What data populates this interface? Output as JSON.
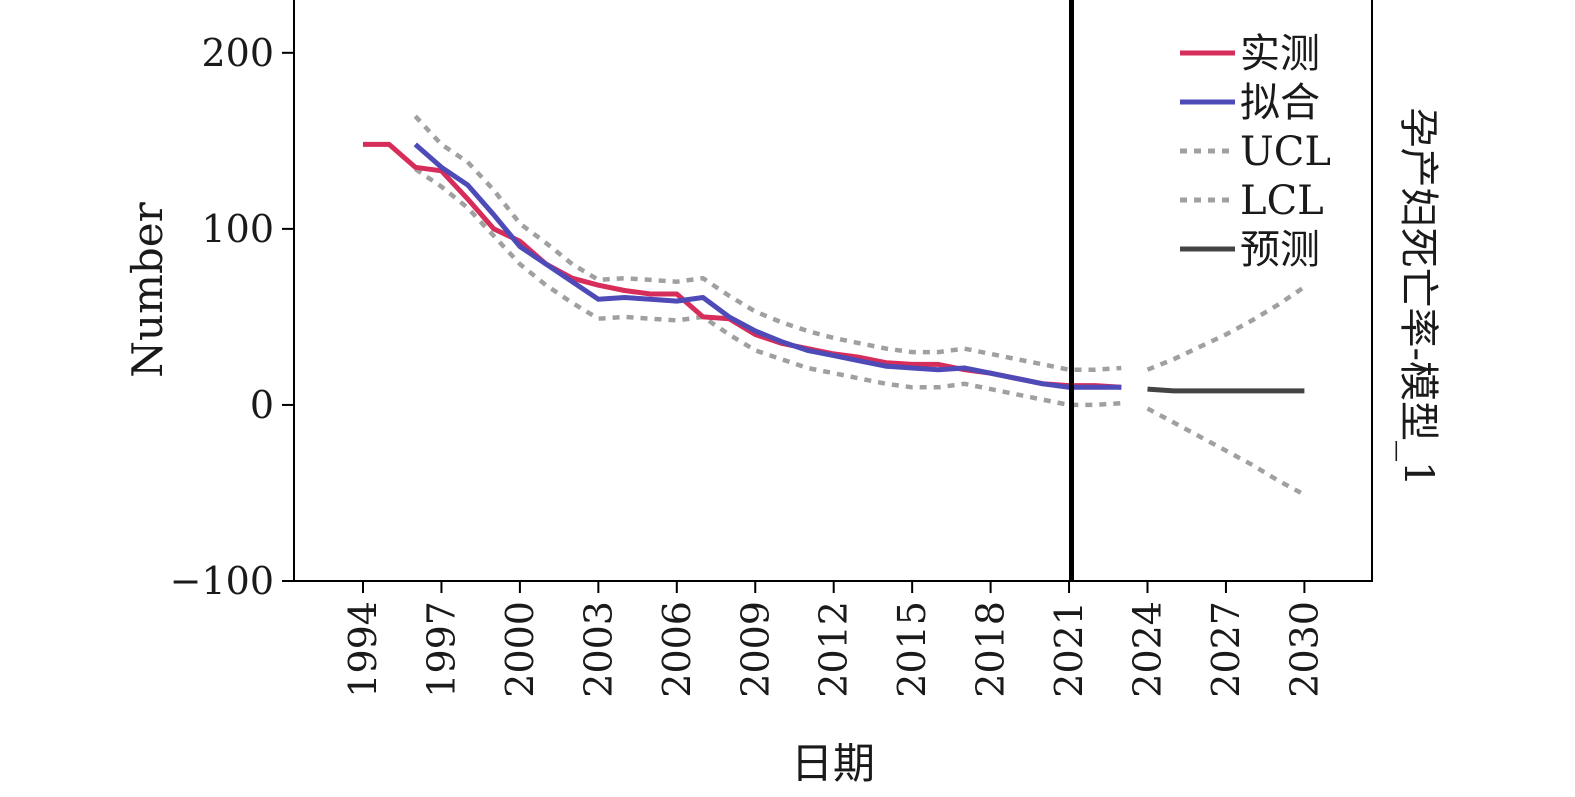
{
  "chart_data": {
    "type": "line",
    "ylabel": "Number",
    "xlabel": "日期",
    "side_title": "孕产妇死亡率-模型_1",
    "ylim": [
      -100,
      230
    ],
    "xlim": [
      1991.5,
      1995.0
    ],
    "y_ticks": [
      {
        "value": 200,
        "label": "200"
      },
      {
        "value": 100,
        "label": "100"
      },
      {
        "value": 0,
        "label": "0"
      },
      {
        "value": -100,
        "label": "−100"
      }
    ],
    "x_ticks": [
      "1994",
      "1997",
      "2000",
      "2003",
      "2006",
      "2009",
      "2012",
      "2015",
      "2018",
      "2021",
      "2024",
      "2027",
      "2030"
    ],
    "forecast_start": 2024,
    "legend_position": "top-right",
    "legend": [
      {
        "label": "实测",
        "color": "#d62d5a",
        "style": "solid"
      },
      {
        "label": "拟合",
        "color": "#4e4bb8",
        "style": "solid"
      },
      {
        "label": "UCL",
        "color": "#a0a0a0",
        "style": "dotted"
      },
      {
        "label": "LCL",
        "color": "#a0a0a0",
        "style": "dotted"
      },
      {
        "label": "预测",
        "color": "#444444",
        "style": "solid"
      }
    ],
    "series": [
      {
        "name": "实测",
        "color": "#d62d5a",
        "dash": "",
        "x": [
          1994,
          1995,
          1996,
          1997,
          1998,
          1999,
          2000,
          2001,
          2002,
          2003,
          2004,
          2005,
          2006,
          2007,
          2008,
          2009,
          2010,
          2011,
          2012,
          2013,
          2014,
          2015,
          2016,
          2017,
          2018,
          2019,
          2020,
          2021,
          2022,
          2023
        ],
        "y": [
          148,
          148,
          135,
          133,
          117,
          100,
          93,
          80,
          72,
          68,
          65,
          63,
          63,
          50,
          49,
          40,
          35,
          32,
          29,
          27,
          24,
          23,
          23,
          20,
          18,
          15,
          12,
          11,
          11,
          10
        ]
      },
      {
        "name": "拟合",
        "color": "#4e4bb8",
        "dash": "",
        "x": [
          1996,
          1997,
          1998,
          1999,
          2000,
          2001,
          2002,
          2003,
          2004,
          2005,
          2006,
          2007,
          2008,
          2009,
          2010,
          2011,
          2012,
          2013,
          2014,
          2015,
          2016,
          2017,
          2018,
          2019,
          2020,
          2021,
          2022,
          2023
        ],
        "y": [
          148,
          135,
          125,
          108,
          90,
          80,
          70,
          60,
          61,
          60,
          59,
          61,
          50,
          42,
          36,
          31,
          28,
          25,
          22,
          21,
          20,
          21,
          18,
          15,
          12,
          10,
          10,
          10
        ]
      },
      {
        "name": "UCL",
        "color": "#a0a0a0",
        "dash": "7 7",
        "x": [
          1996,
          1997,
          1998,
          1999,
          2000,
          2001,
          2002,
          2003,
          2004,
          2005,
          2006,
          2007,
          2008,
          2009,
          2010,
          2011,
          2012,
          2013,
          2014,
          2015,
          2016,
          2017,
          2018,
          2019,
          2020,
          2021,
          2022,
          2023
        ],
        "y": [
          164,
          148,
          138,
          122,
          103,
          92,
          80,
          71,
          72,
          71,
          70,
          72,
          62,
          53,
          47,
          42,
          38,
          35,
          32,
          30,
          30,
          32,
          29,
          26,
          23,
          20,
          20,
          21
        ]
      },
      {
        "name": "LCL",
        "color": "#a0a0a0",
        "dash": "7 7",
        "x": [
          1996,
          1997,
          1998,
          1999,
          2000,
          2001,
          2002,
          2003,
          2004,
          2005,
          2006,
          2007,
          2008,
          2009,
          2010,
          2011,
          2012,
          2013,
          2014,
          2015,
          2016,
          2017,
          2018,
          2019,
          2020,
          2021,
          2022,
          2023
        ],
        "y": [
          134,
          124,
          112,
          96,
          80,
          68,
          58,
          49,
          50,
          49,
          48,
          50,
          40,
          31,
          26,
          21,
          18,
          15,
          12,
          10,
          10,
          12,
          9,
          6,
          3,
          0,
          0,
          1
        ]
      },
      {
        "name": "预测",
        "color": "#444444",
        "dash": "",
        "x": [
          2024,
          2025,
          2026,
          2027,
          2028,
          2029,
          2030
        ],
        "y": [
          9,
          8,
          8,
          8,
          8,
          8,
          8
        ]
      },
      {
        "name": "UCL",
        "color": "#a0a0a0",
        "dash": "7 7",
        "x": [
          2024,
          2025,
          2026,
          2027,
          2028,
          2029,
          2030
        ],
        "y": [
          20,
          26,
          33,
          40,
          48,
          57,
          67
        ]
      },
      {
        "name": "LCL",
        "color": "#a0a0a0",
        "dash": "7 7",
        "x": [
          2024,
          2025,
          2026,
          2027,
          2028,
          2029,
          2030
        ],
        "y": [
          -2,
          -10,
          -18,
          -26,
          -34,
          -43,
          -51
        ]
      }
    ]
  }
}
